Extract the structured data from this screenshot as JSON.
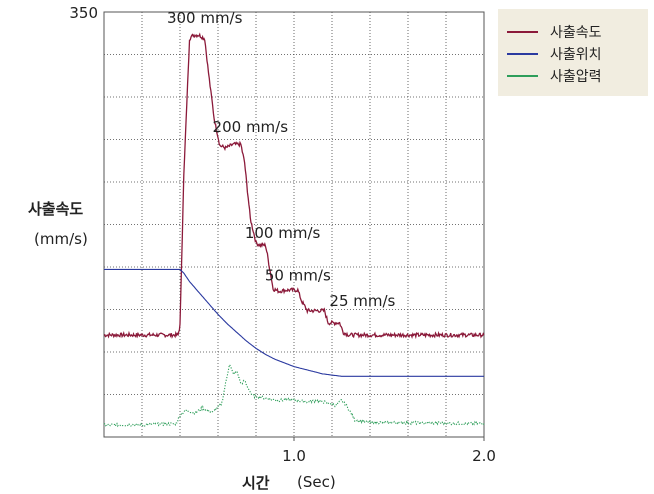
{
  "chart_data": {
    "type": "line",
    "ylabel": "사출속도",
    "ylabel_unit": "(mm/s)",
    "xlabel": "시간",
    "xlabel_unit": "(Sec)",
    "xlim": [
      0,
      2.0
    ],
    "ylim": [
      0,
      350
    ],
    "x_ticks": [
      {
        "value": 1.0,
        "label": "1.0"
      },
      {
        "value": 2.0,
        "label": "2.0"
      }
    ],
    "y_ticks": [
      {
        "value": 350,
        "label": "350"
      }
    ],
    "grid": true,
    "legend_position": "top-right",
    "legend": [
      {
        "name": "사출속도",
        "color": "#8b1a3a"
      },
      {
        "name": "사출위치",
        "color": "#2b3aa0"
      },
      {
        "name": "사출압력",
        "color": "#2e9e5a"
      }
    ],
    "series": [
      {
        "name": "사출속도",
        "color": "#8b1a3a",
        "style": "solid",
        "points": [
          [
            0.0,
            84
          ],
          [
            0.39,
            84
          ],
          [
            0.4,
            92
          ],
          [
            0.42,
            215
          ],
          [
            0.44,
            290
          ],
          [
            0.45,
            328
          ],
          [
            0.47,
            331
          ],
          [
            0.5,
            331
          ],
          [
            0.53,
            328
          ],
          [
            0.55,
            300
          ],
          [
            0.58,
            262
          ],
          [
            0.61,
            240
          ],
          [
            0.64,
            238
          ],
          [
            0.68,
            241
          ],
          [
            0.72,
            241
          ],
          [
            0.74,
            226
          ],
          [
            0.77,
            180
          ],
          [
            0.8,
            160
          ],
          [
            0.82,
            158
          ],
          [
            0.85,
            158
          ],
          [
            0.86,
            150
          ],
          [
            0.89,
            122
          ],
          [
            0.92,
            120
          ],
          [
            0.96,
            121
          ],
          [
            1.02,
            121
          ],
          [
            1.04,
            112
          ],
          [
            1.07,
            104
          ],
          [
            1.1,
            104
          ],
          [
            1.16,
            104
          ],
          [
            1.18,
            94
          ],
          [
            1.21,
            94
          ],
          [
            1.24,
            94
          ],
          [
            1.26,
            86
          ],
          [
            1.29,
            84
          ],
          [
            2.0,
            84
          ]
        ]
      },
      {
        "name": "사출위치",
        "color": "#2b3aa0",
        "style": "solid",
        "points": [
          [
            0.0,
            138
          ],
          [
            0.4,
            138
          ],
          [
            0.42,
            135
          ],
          [
            0.45,
            128
          ],
          [
            0.5,
            119
          ],
          [
            0.55,
            110
          ],
          [
            0.6,
            101
          ],
          [
            0.65,
            93
          ],
          [
            0.7,
            86
          ],
          [
            0.75,
            79
          ],
          [
            0.8,
            73
          ],
          [
            0.85,
            68
          ],
          [
            0.9,
            64
          ],
          [
            0.95,
            61
          ],
          [
            1.0,
            58
          ],
          [
            1.05,
            56
          ],
          [
            1.1,
            54
          ],
          [
            1.15,
            52
          ],
          [
            1.2,
            51
          ],
          [
            1.25,
            50
          ],
          [
            1.3,
            50
          ],
          [
            2.0,
            50
          ]
        ]
      },
      {
        "name": "사출압력",
        "color": "#2e9e5a",
        "style": "dotted",
        "points": [
          [
            0.0,
            10
          ],
          [
            0.2,
            10
          ],
          [
            0.38,
            11
          ],
          [
            0.4,
            18
          ],
          [
            0.43,
            22
          ],
          [
            0.48,
            20
          ],
          [
            0.52,
            24
          ],
          [
            0.57,
            20
          ],
          [
            0.62,
            28
          ],
          [
            0.66,
            60
          ],
          [
            0.68,
            52
          ],
          [
            0.7,
            54
          ],
          [
            0.72,
            44
          ],
          [
            0.74,
            46
          ],
          [
            0.78,
            34
          ],
          [
            0.85,
            32
          ],
          [
            0.92,
            30
          ],
          [
            0.97,
            31
          ],
          [
            1.02,
            30
          ],
          [
            1.07,
            29
          ],
          [
            1.12,
            30
          ],
          [
            1.18,
            28
          ],
          [
            1.22,
            26
          ],
          [
            1.25,
            30
          ],
          [
            1.28,
            25
          ],
          [
            1.32,
            14
          ],
          [
            1.4,
            12
          ],
          [
            2.0,
            11
          ]
        ]
      }
    ],
    "annotations": [
      {
        "text": "300  mm/s",
        "x": 0.53,
        "y": 341
      },
      {
        "text": "200  mm/s",
        "x": 0.77,
        "y": 251
      },
      {
        "text": "100  mm/s",
        "x": 0.94,
        "y": 164
      },
      {
        "text": "50  mm/s",
        "x": 1.02,
        "y": 129
      },
      {
        "text": "25  mm/s",
        "x": 1.36,
        "y": 108
      }
    ]
  }
}
